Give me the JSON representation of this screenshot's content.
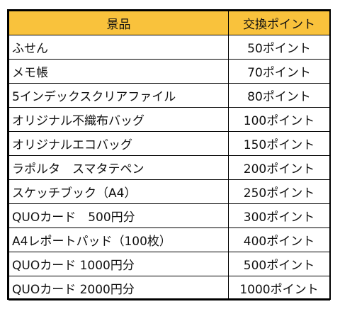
{
  "table": {
    "headers": {
      "prize": "景品",
      "points": "交換ポイント"
    },
    "header_color": "#f9c23c",
    "rows": [
      {
        "name": "ふせん",
        "points": "50ポイント"
      },
      {
        "name": "メモ帳",
        "points": "70ポイント"
      },
      {
        "name": "5インデックスクリアファイル",
        "points": "80ポイント"
      },
      {
        "name": "オリジナル不織布バッグ",
        "points": "100ポイント"
      },
      {
        "name": "オリジナルエコバッグ",
        "points": "150ポイント"
      },
      {
        "name": "ラポルタ　スマタテペン",
        "points": "200ポイント"
      },
      {
        "name": "スケッチブック（A4）",
        "points": "250ポイント"
      },
      {
        "name": "QUOカード　500円分",
        "points": "300ポイント"
      },
      {
        "name": "A4レポートパッド（100枚）",
        "points": "400ポイント"
      },
      {
        "name": "QUOカード 1000円分",
        "points": "500ポイント"
      },
      {
        "name": "QUOカード 2000円分",
        "points": "1000ポイント"
      }
    ]
  }
}
